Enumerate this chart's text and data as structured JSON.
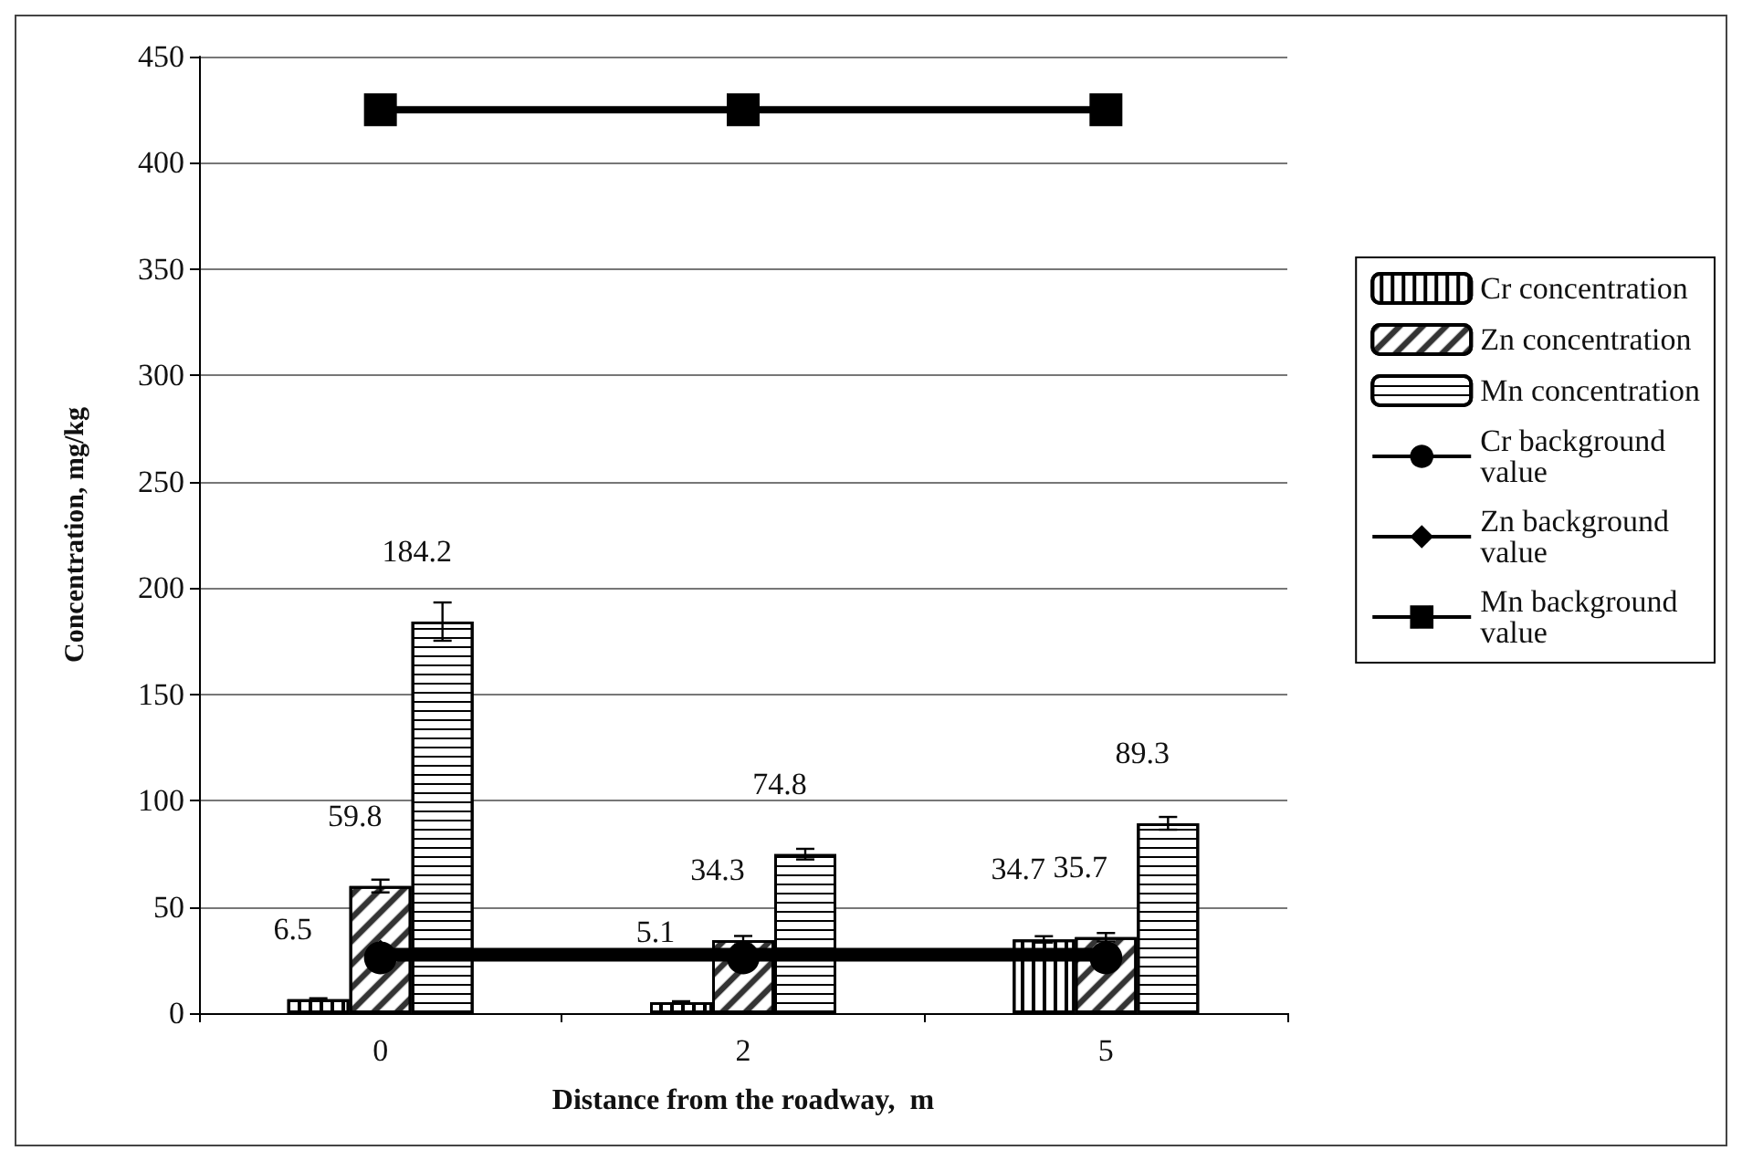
{
  "chart_data": {
    "type": "bar",
    "xlabel": "Distance from the roadway,  m",
    "ylabel": "Concentration, mg/kg",
    "categories": [
      "0",
      "2",
      "5"
    ],
    "ylim": [
      0,
      450
    ],
    "yticks": [
      0,
      50,
      100,
      150,
      200,
      250,
      300,
      350,
      400,
      450
    ],
    "grid": "y",
    "legend": "right",
    "series": [
      {
        "name": "Cr concentration",
        "color": "#ffffff",
        "values": [
          6.5,
          5.1,
          34.7
        ],
        "value_labels": [
          "6.5",
          "5.1",
          "34.7"
        ],
        "errors": [
          0.5,
          0.5,
          1.5
        ]
      },
      {
        "name": "Zn concentration",
        "color": "#ffffff",
        "values": [
          59.8,
          34.3,
          35.7
        ],
        "value_labels": [
          "59.8",
          "34.3",
          "35.7"
        ],
        "errors": [
          3,
          2,
          2
        ]
      },
      {
        "name": "Mn concentration",
        "color": "#ffffff",
        "values": [
          184.2,
          74.8,
          89.3
        ],
        "value_labels": [
          "184.2",
          "74.8",
          "89.3"
        ],
        "errors": [
          9,
          2.5,
          3
        ]
      },
      {
        "name": "Cr background value",
        "type": "line",
        "marker": "circle",
        "color": "#000000",
        "values": [
          26,
          26,
          26
        ]
      },
      {
        "name": "Zn background value",
        "type": "line",
        "marker": "diamond",
        "color": "#000000",
        "values": [
          29,
          29,
          29
        ]
      },
      {
        "name": "Mn background value",
        "type": "line",
        "marker": "square",
        "color": "#000000",
        "values": [
          425,
          425,
          425
        ]
      }
    ]
  }
}
